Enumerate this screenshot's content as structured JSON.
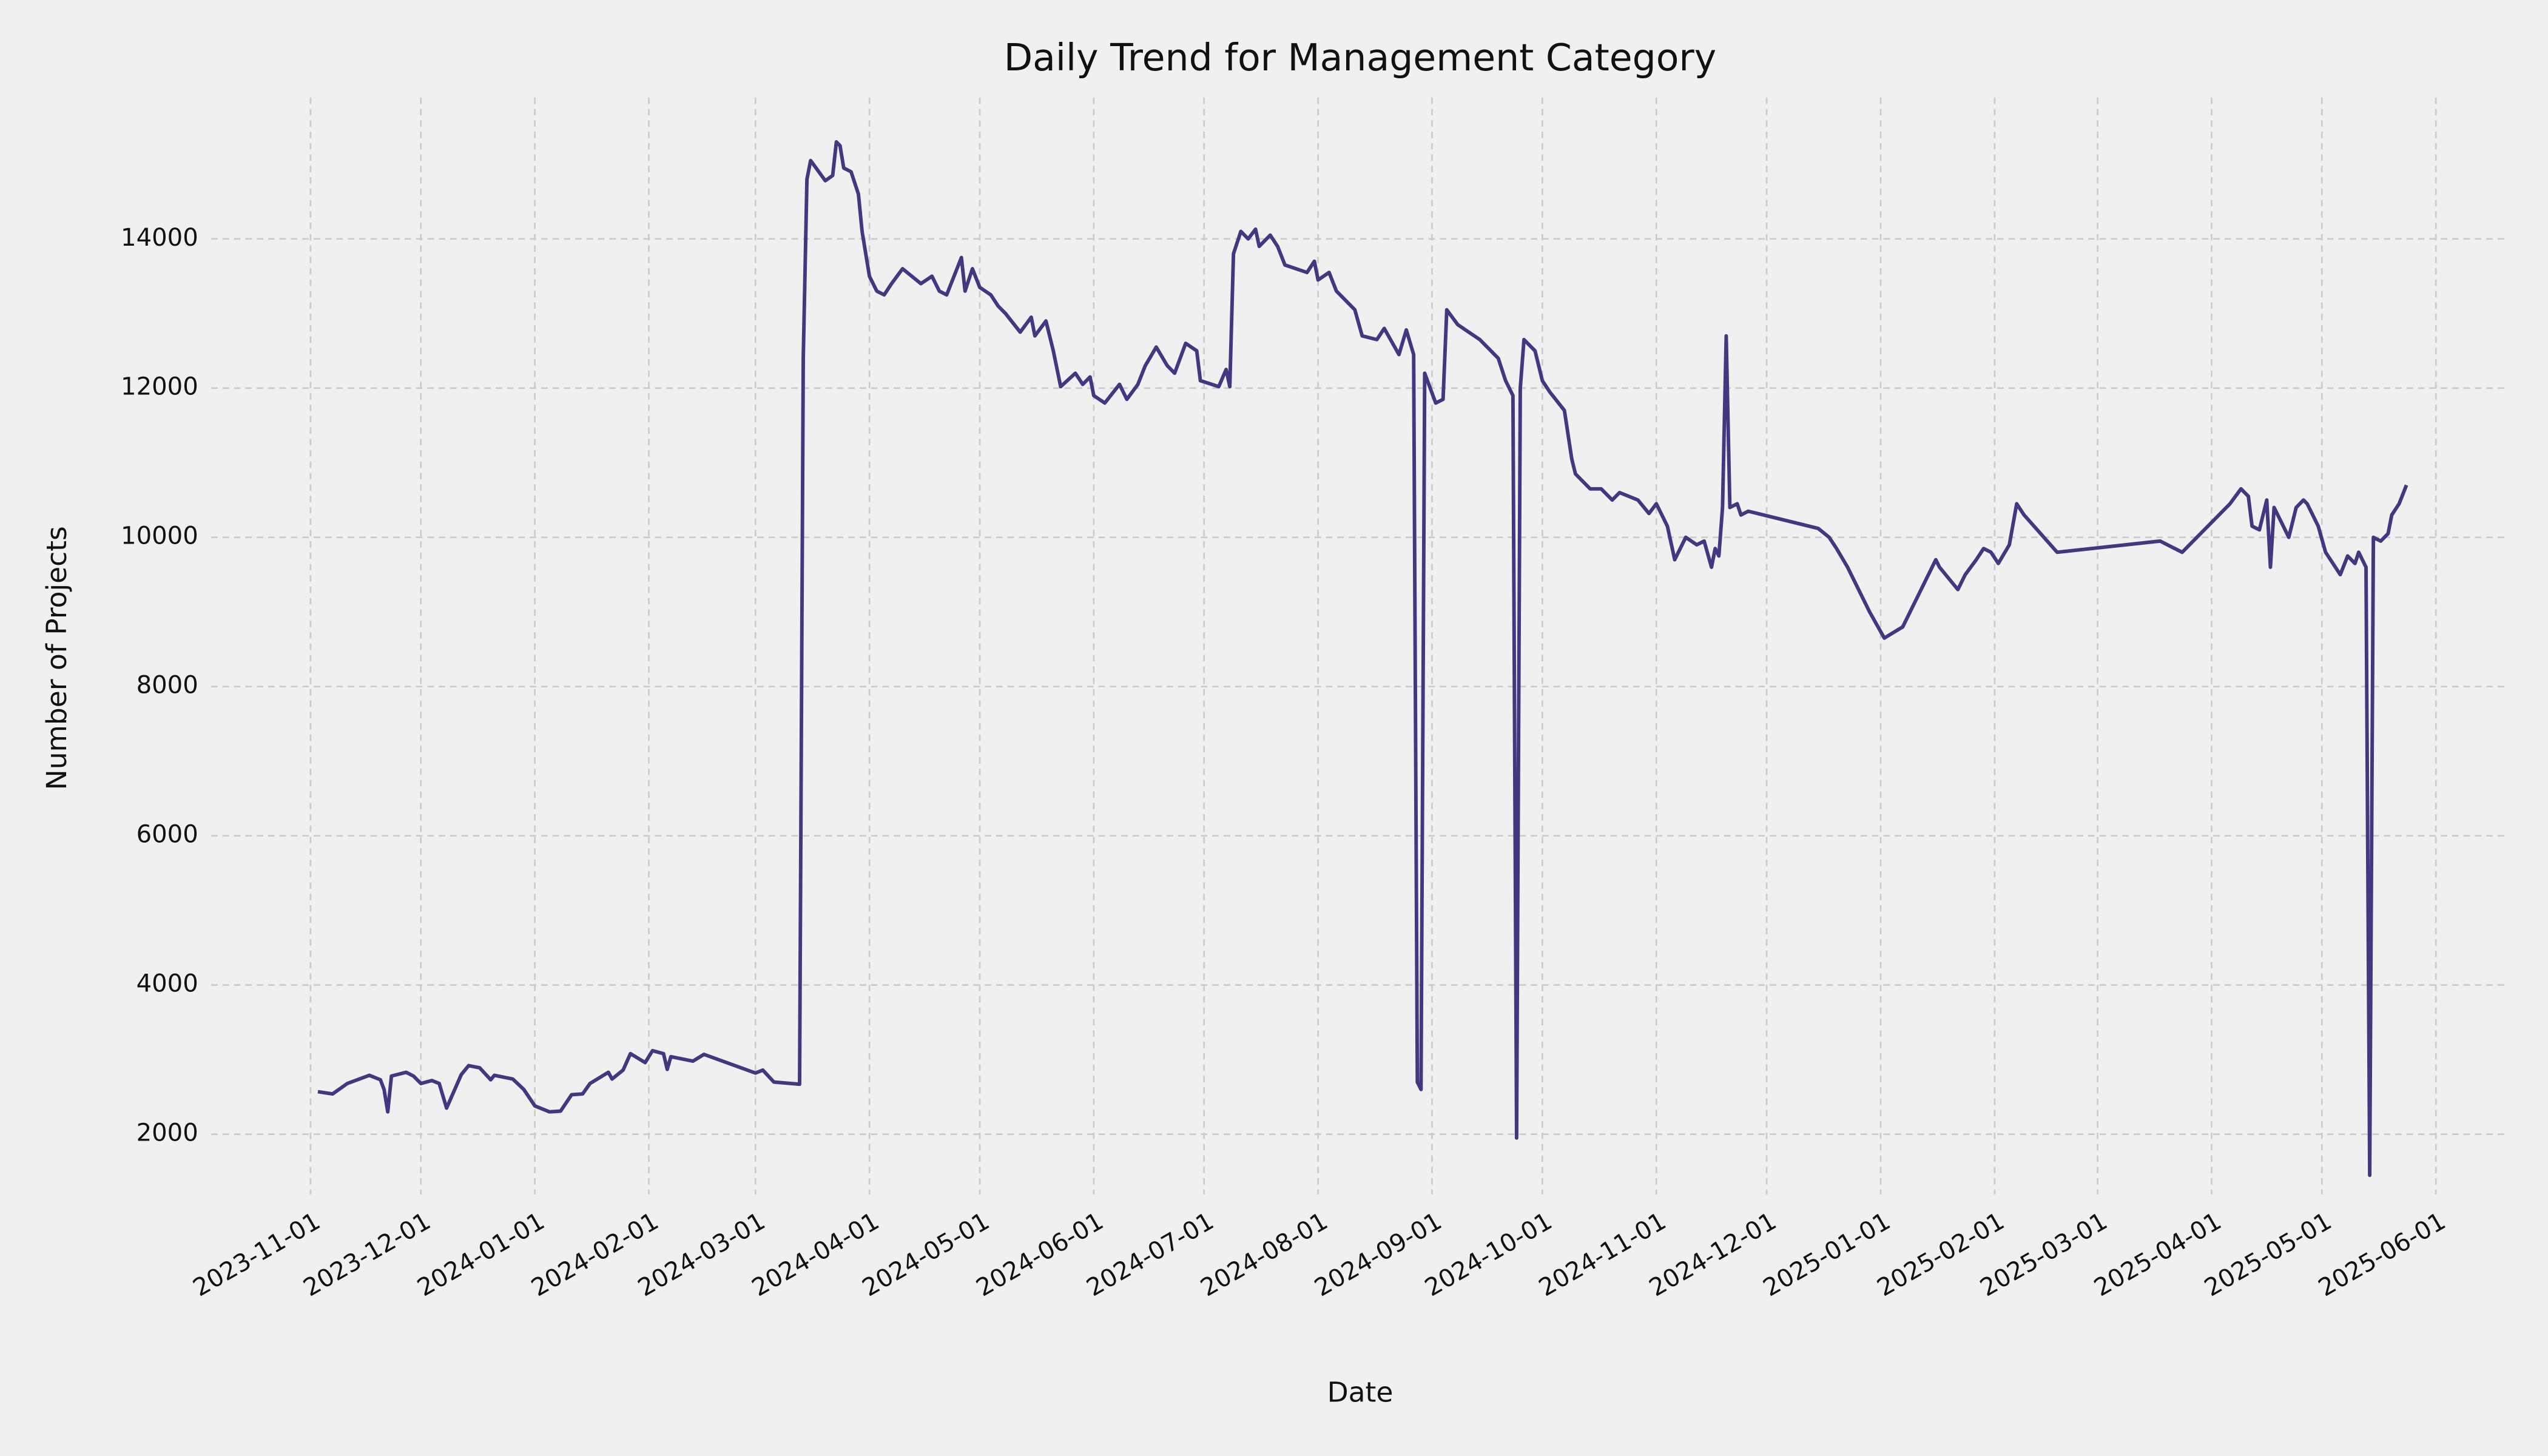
{
  "chart_data": {
    "type": "line",
    "title": "Daily Trend for Management Category",
    "xlabel": "Date",
    "ylabel": "Number of Projects",
    "grid": true,
    "xlim": [
      "2023-10-05",
      "2025-06-20"
    ],
    "ylim": [
      1194,
      15895
    ],
    "xticks": [
      "2023-11-01",
      "2023-12-01",
      "2024-01-01",
      "2024-02-01",
      "2024-03-01",
      "2024-04-01",
      "2024-05-01",
      "2024-06-01",
      "2024-07-01",
      "2024-08-01",
      "2024-09-01",
      "2024-10-01",
      "2024-11-01",
      "2024-12-01",
      "2025-01-01",
      "2025-02-01",
      "2025-03-01",
      "2025-04-01",
      "2025-05-01",
      "2025-06-01"
    ],
    "yticks": [
      2000,
      4000,
      6000,
      8000,
      10000,
      12000,
      14000
    ],
    "x": [
      "2023-11-03",
      "2023-11-07",
      "2023-11-11",
      "2023-11-17",
      "2023-11-20",
      "2023-11-21",
      "2023-11-22",
      "2023-11-23",
      "2023-11-27",
      "2023-11-29",
      "2023-12-01",
      "2023-12-04",
      "2023-12-06",
      "2023-12-08",
      "2023-12-12",
      "2023-12-14",
      "2023-12-17",
      "2023-12-20",
      "2023-12-21",
      "2023-12-26",
      "2023-12-29",
      "2024-01-01",
      "2024-01-05",
      "2024-01-08",
      "2024-01-11",
      "2024-01-14",
      "2024-01-16",
      "2024-01-21",
      "2024-01-22",
      "2024-01-25",
      "2024-01-27",
      "2024-01-31",
      "2024-02-02",
      "2024-02-05",
      "2024-02-06",
      "2024-02-07",
      "2024-02-13",
      "2024-02-16",
      "2024-03-01",
      "2024-03-03",
      "2024-03-06",
      "2024-03-13",
      "2024-03-14",
      "2024-03-15",
      "2024-03-16",
      "2024-03-20",
      "2024-03-22",
      "2024-03-23",
      "2024-03-24",
      "2024-03-25",
      "2024-03-27",
      "2024-03-29",
      "2024-03-30",
      "2024-04-01",
      "2024-04-03",
      "2024-04-05",
      "2024-04-07",
      "2024-04-10",
      "2024-04-15",
      "2024-04-18",
      "2024-04-20",
      "2024-04-22",
      "2024-04-24",
      "2024-04-26",
      "2024-04-27",
      "2024-04-29",
      "2024-05-01",
      "2024-05-04",
      "2024-05-06",
      "2024-05-08",
      "2024-05-12",
      "2024-05-15",
      "2024-05-16",
      "2024-05-19",
      "2024-05-21",
      "2024-05-23",
      "2024-05-27",
      "2024-05-29",
      "2024-05-31",
      "2024-06-01",
      "2024-06-04",
      "2024-06-08",
      "2024-06-10",
      "2024-06-13",
      "2024-06-15",
      "2024-06-18",
      "2024-06-21",
      "2024-06-23",
      "2024-06-26",
      "2024-06-29",
      "2024-06-30",
      "2024-07-05",
      "2024-07-07",
      "2024-07-08",
      "2024-07-09",
      "2024-07-11",
      "2024-07-13",
      "2024-07-15",
      "2024-07-16",
      "2024-07-19",
      "2024-07-21",
      "2024-07-23",
      "2024-07-29",
      "2024-07-31",
      "2024-08-01",
      "2024-08-04",
      "2024-08-06",
      "2024-08-11",
      "2024-08-13",
      "2024-08-17",
      "2024-08-19",
      "2024-08-23",
      "2024-08-25",
      "2024-08-27",
      "2024-08-28",
      "2024-08-29",
      "2024-08-30",
      "2024-09-02",
      "2024-09-04",
      "2024-09-05",
      "2024-09-08",
      "2024-09-14",
      "2024-09-19",
      "2024-09-21",
      "2024-09-23",
      "2024-09-24",
      "2024-09-25",
      "2024-09-26",
      "2024-09-29",
      "2024-10-01",
      "2024-10-03",
      "2024-10-07",
      "2024-10-09",
      "2024-10-10",
      "2024-10-14",
      "2024-10-17",
      "2024-10-20",
      "2024-10-22",
      "2024-10-27",
      "2024-10-30",
      "2024-11-01",
      "2024-11-04",
      "2024-11-06",
      "2024-11-09",
      "2024-11-12",
      "2024-11-14",
      "2024-11-16",
      "2024-11-17",
      "2024-11-18",
      "2024-11-19",
      "2024-11-20",
      "2024-11-21",
      "2024-11-23",
      "2024-11-24",
      "2024-11-26",
      "2024-12-15",
      "2024-12-18",
      "2024-12-20",
      "2024-12-23",
      "2024-12-29",
      "2025-01-02",
      "2025-01-07",
      "2025-01-09",
      "2025-01-16",
      "2025-01-17",
      "2025-01-22",
      "2025-01-24",
      "2025-01-27",
      "2025-01-29",
      "2025-01-31",
      "2025-02-02",
      "2025-02-05",
      "2025-02-07",
      "2025-02-09",
      "2025-02-18",
      "2025-03-18",
      "2025-03-24",
      "2025-03-31",
      "2025-04-06",
      "2025-04-09",
      "2025-04-11",
      "2025-04-12",
      "2025-04-14",
      "2025-04-16",
      "2025-04-17",
      "2025-04-18",
      "2025-04-19",
      "2025-04-22",
      "2025-04-24",
      "2025-04-26",
      "2025-04-27",
      "2025-04-30",
      "2025-05-02",
      "2025-05-04",
      "2025-05-06",
      "2025-05-08",
      "2025-05-10",
      "2025-05-11",
      "2025-05-13",
      "2025-05-14",
      "2025-05-15",
      "2025-05-17",
      "2025-05-19",
      "2025-05-20",
      "2025-05-22",
      "2025-05-24"
    ],
    "series": [
      {
        "name": "Management",
        "color": "#45377f",
        "values": [
          2570,
          2540,
          2680,
          2790,
          2730,
          2600,
          2300,
          2780,
          2830,
          2780,
          2680,
          2720,
          2680,
          2350,
          2800,
          2920,
          2890,
          2730,
          2790,
          2740,
          2600,
          2380,
          2300,
          2310,
          2530,
          2540,
          2680,
          2830,
          2740,
          2860,
          3080,
          2960,
          3120,
          3080,
          2870,
          3040,
          2980,
          3070,
          2820,
          2860,
          2700,
          2670,
          12400,
          14800,
          15050,
          14780,
          14850,
          15300,
          15250,
          14950,
          14900,
          14600,
          14100,
          13500,
          13300,
          13250,
          13400,
          13600,
          13400,
          13500,
          13300,
          13250,
          13500,
          13750,
          13300,
          13600,
          13350,
          13250,
          13100,
          13000,
          12750,
          12950,
          12700,
          12900,
          12500,
          12020,
          12200,
          12050,
          12150,
          11900,
          11800,
          12050,
          11850,
          12050,
          12300,
          12550,
          12300,
          12200,
          12600,
          12500,
          12100,
          12020,
          12250,
          12020,
          13800,
          14100,
          14000,
          14130,
          13900,
          14050,
          13900,
          13650,
          13550,
          13700,
          13450,
          13550,
          13300,
          13050,
          12700,
          12650,
          12800,
          12450,
          12780,
          12450,
          2700,
          2600,
          12200,
          11800,
          11850,
          13050,
          12850,
          12650,
          12400,
          12100,
          11900,
          1950,
          12000,
          12650,
          12500,
          12100,
          11950,
          11700,
          11050,
          10850,
          10650,
          10650,
          10500,
          10600,
          10500,
          10320,
          10450,
          10150,
          9700,
          10000,
          9900,
          9950,
          9600,
          9850,
          9750,
          10400,
          12700,
          10400,
          10450,
          10300,
          10350,
          10120,
          10000,
          9850,
          9600,
          9000,
          8650,
          8800,
          9000,
          9700,
          9600,
          9300,
          9500,
          9700,
          9850,
          9800,
          9650,
          9900,
          10450,
          10300,
          9800,
          9950,
          9800,
          10150,
          10450,
          10650,
          10550,
          10150,
          10100,
          10500,
          9600,
          10400,
          10300,
          10000,
          10400,
          10500,
          10450,
          10150,
          9800,
          9650,
          9500,
          9750,
          9650,
          9800,
          9600,
          1450,
          10000,
          9950,
          10050,
          10300,
          10450,
          10700
        ]
      }
    ]
  }
}
